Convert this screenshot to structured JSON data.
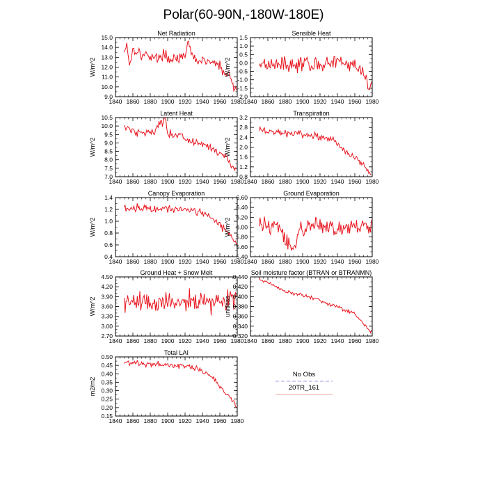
{
  "figure": {
    "title": "Polar(60-90N,-180W-180E)",
    "series_color": "#e8141e",
    "obs_color": "#a0a0e6"
  },
  "legend": {
    "entries": [
      {
        "label": "No Obs",
        "style": "dashed",
        "color": "#a0a0e6"
      },
      {
        "label": "20TR_161",
        "style": "solid",
        "color": "#f0a0a0"
      }
    ]
  },
  "chart_data": [
    {
      "type": "line",
      "title": "Net Radiation",
      "ylabel": "W/m^2",
      "xlim": [
        1840,
        1980
      ],
      "xticks": [
        "1840",
        "1860",
        "1880",
        "1900",
        "1920",
        "1940",
        "1960",
        "1980"
      ],
      "ylim": [
        9.0,
        15.0
      ],
      "yticks": [
        "9.0",
        "10.0",
        "11.0",
        "12.0",
        "13.0",
        "14.0",
        "15.0"
      ],
      "minor_y": 0.5,
      "x_start": 1850,
      "x_end": 1979,
      "anchors": [
        [
          1850,
          13.5
        ],
        [
          1853,
          14.5
        ],
        [
          1856,
          12.2
        ],
        [
          1860,
          13.8
        ],
        [
          1865,
          13.7
        ],
        [
          1870,
          13.2
        ],
        [
          1880,
          13.2
        ],
        [
          1890,
          12.8
        ],
        [
          1895,
          13.5
        ],
        [
          1900,
          12.8
        ],
        [
          1910,
          13.0
        ],
        [
          1920,
          12.8
        ],
        [
          1923,
          14.6
        ],
        [
          1930,
          12.8
        ],
        [
          1940,
          12.6
        ],
        [
          1950,
          12.5
        ],
        [
          1960,
          12.2
        ],
        [
          1965,
          11.0
        ],
        [
          1970,
          11.5
        ],
        [
          1975,
          10.2
        ],
        [
          1979,
          9.6
        ]
      ],
      "noise": 0.55
    },
    {
      "type": "line",
      "title": "Sensible Heat",
      "ylabel": "W/m^2",
      "xlim": [
        1840,
        1980
      ],
      "xticks": [
        "1840",
        "1860",
        "1880",
        "1900",
        "1920",
        "1940",
        "1960",
        "1980"
      ],
      "ylim": [
        -2.0,
        1.5
      ],
      "yticks": [
        "-2.0",
        "-1.5",
        "-1.0",
        "-0.5",
        "0.0",
        "0.5",
        "1.0",
        "1.5"
      ],
      "minor_y": 0.25,
      "x_start": 1850,
      "x_end": 1979,
      "anchors": [
        [
          1850,
          0.0
        ],
        [
          1900,
          -0.1
        ],
        [
          1950,
          0.0
        ],
        [
          1970,
          -0.5
        ],
        [
          1979,
          -1.4
        ]
      ],
      "noise": 0.45
    },
    {
      "type": "line",
      "title": "Latent Heat",
      "ylabel": "W/m^2",
      "xlim": [
        1840,
        1980
      ],
      "xticks": [
        "1840",
        "1860",
        "1880",
        "1900",
        "1920",
        "1940",
        "1960",
        "1980"
      ],
      "ylim": [
        7.0,
        10.5
      ],
      "yticks": [
        "7.0",
        "7.5",
        "8.0",
        "8.5",
        "9.0",
        "9.5",
        "10.0",
        "10.5"
      ],
      "minor_y": 0.25,
      "x_start": 1850,
      "x_end": 1979,
      "anchors": [
        [
          1850,
          10.0
        ],
        [
          1860,
          9.7
        ],
        [
          1880,
          9.6
        ],
        [
          1897,
          10.4
        ],
        [
          1900,
          9.5
        ],
        [
          1920,
          9.3
        ],
        [
          1940,
          8.9
        ],
        [
          1960,
          8.4
        ],
        [
          1970,
          7.9
        ],
        [
          1979,
          7.4
        ]
      ],
      "noise": 0.3
    },
    {
      "type": "line",
      "title": "Transpiration",
      "ylabel": "W/m^2",
      "xlim": [
        1840,
        1980
      ],
      "xticks": [
        "1840",
        "1860",
        "1880",
        "1900",
        "1920",
        "1940",
        "1960",
        "1980"
      ],
      "ylim": [
        0.8,
        3.2
      ],
      "yticks": [
        "0.8",
        "1.2",
        "1.6",
        "2.0",
        "2.4",
        "2.8",
        "3.2"
      ],
      "minor_y": 0.2,
      "x_start": 1850,
      "x_end": 1979,
      "anchors": [
        [
          1850,
          2.7
        ],
        [
          1870,
          2.6
        ],
        [
          1900,
          2.5
        ],
        [
          1920,
          2.4
        ],
        [
          1935,
          2.3
        ],
        [
          1945,
          2.0
        ],
        [
          1960,
          1.6
        ],
        [
          1970,
          1.2
        ],
        [
          1979,
          0.9
        ]
      ],
      "noise": 0.15
    },
    {
      "type": "line",
      "title": "Canopy Evaporation",
      "ylabel": "W/m^2",
      "xlim": [
        1840,
        1980
      ],
      "xticks": [
        "1840",
        "1860",
        "1880",
        "1900",
        "1920",
        "1940",
        "1960",
        "1980"
      ],
      "ylim": [
        0.4,
        1.4
      ],
      "yticks": [
        "0.4",
        "0.6",
        "0.8",
        "1.0",
        "1.2",
        "1.4"
      ],
      "minor_y": 0.1,
      "x_start": 1850,
      "x_end": 1979,
      "anchors": [
        [
          1850,
          1.22
        ],
        [
          1870,
          1.22
        ],
        [
          1900,
          1.22
        ],
        [
          1920,
          1.22
        ],
        [
          1940,
          1.15
        ],
        [
          1950,
          1.05
        ],
        [
          1960,
          0.95
        ],
        [
          1970,
          0.8
        ],
        [
          1979,
          0.65
        ]
      ],
      "noise": 0.07
    },
    {
      "type": "line",
      "title": "Ground Evaporation",
      "ylabel": "W/m^2",
      "xlim": [
        1840,
        1980
      ],
      "xticks": [
        "1840",
        "1860",
        "1880",
        "1900",
        "1920",
        "1940",
        "1960",
        "1980"
      ],
      "ylim": [
        5.4,
        6.6
      ],
      "yticks": [
        "5.40",
        "5.60",
        "5.80",
        "6.00",
        "6.20",
        "6.40",
        "6.60"
      ],
      "minor_y": 0.1,
      "x_start": 1850,
      "x_end": 1979,
      "anchors": [
        [
          1850,
          6.05
        ],
        [
          1870,
          6.0
        ],
        [
          1887,
          5.6
        ],
        [
          1900,
          5.95
        ],
        [
          1920,
          6.05
        ],
        [
          1940,
          5.95
        ],
        [
          1960,
          6.05
        ],
        [
          1979,
          6.0
        ]
      ],
      "noise": 0.18
    },
    {
      "type": "line",
      "title": "Ground Heat + Snow Melt",
      "ylabel": "W/m^2",
      "xlim": [
        1840,
        1980
      ],
      "xticks": [
        "1840",
        "1860",
        "1880",
        "1900",
        "1920",
        "1940",
        "1960",
        "1980"
      ],
      "ylim": [
        2.7,
        4.5
      ],
      "yticks": [
        "2.70",
        "3.00",
        "3.30",
        "3.60",
        "3.90",
        "4.20",
        "4.50"
      ],
      "minor_y": 0.1,
      "x_start": 1850,
      "x_end": 1979,
      "anchors": [
        [
          1850,
          3.75
        ],
        [
          1900,
          3.7
        ],
        [
          1950,
          3.75
        ],
        [
          1979,
          3.8
        ]
      ],
      "noise": 0.32
    },
    {
      "type": "line",
      "title": "Soil moisture factor (BTRAN or BTRANMN)",
      "ylabel": "unitless",
      "xlim": [
        1840,
        1980
      ],
      "xticks": [
        "1840",
        "1860",
        "1880",
        "1900",
        "1920",
        "1940",
        "1960",
        "1980"
      ],
      "ylim": [
        0.32,
        0.44
      ],
      "yticks": [
        "0.320",
        "0.340",
        "0.360",
        "0.380",
        "0.400",
        "0.420",
        "0.440"
      ],
      "minor_y": 0.01,
      "x_start": 1850,
      "x_end": 1979,
      "anchors": [
        [
          1850,
          0.435
        ],
        [
          1860,
          0.428
        ],
        [
          1870,
          0.42
        ],
        [
          1880,
          0.41
        ],
        [
          1890,
          0.405
        ],
        [
          1900,
          0.402
        ],
        [
          1920,
          0.392
        ],
        [
          1940,
          0.38
        ],
        [
          1960,
          0.365
        ],
        [
          1970,
          0.345
        ],
        [
          1979,
          0.328
        ]
      ],
      "noise": 0.004
    },
    {
      "type": "line",
      "title": "Total LAI",
      "ylabel": "m2/m2",
      "xlim": [
        1840,
        1980
      ],
      "xticks": [
        "1840",
        "1860",
        "1880",
        "1900",
        "1920",
        "1940",
        "1960",
        "1980"
      ],
      "ylim": [
        0.15,
        0.5
      ],
      "yticks": [
        "0.15",
        "0.20",
        "0.25",
        "0.30",
        "0.35",
        "0.40",
        "0.45",
        "0.50"
      ],
      "minor_y": 0.025,
      "x_start": 1850,
      "x_end": 1979,
      "anchors": [
        [
          1850,
          0.47
        ],
        [
          1870,
          0.46
        ],
        [
          1890,
          0.455
        ],
        [
          1920,
          0.45
        ],
        [
          1935,
          0.43
        ],
        [
          1950,
          0.38
        ],
        [
          1960,
          0.33
        ],
        [
          1970,
          0.27
        ],
        [
          1979,
          0.21
        ]
      ],
      "noise": 0.018
    }
  ]
}
